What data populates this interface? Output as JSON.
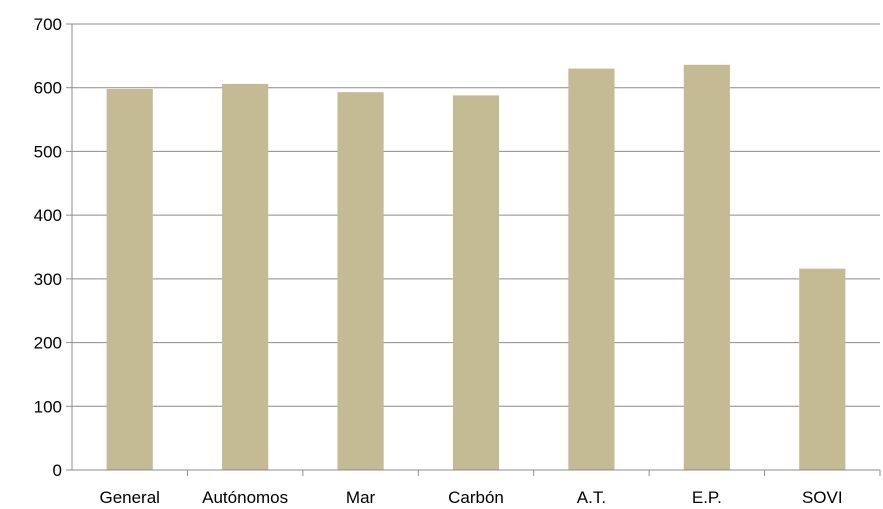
{
  "chart_data": {
    "type": "bar",
    "title": "",
    "xlabel": "",
    "ylabel": "",
    "categories": [
      "General",
      "Autónomos",
      "Mar",
      "Carbón",
      "A.T.",
      "E.P.",
      "SOVI"
    ],
    "values": [
      598,
      606,
      593,
      588,
      630,
      636,
      316
    ],
    "ylim": [
      0,
      700
    ],
    "yticks": [
      "0",
      "100",
      "200",
      "300",
      "400",
      "500",
      "600",
      "700"
    ],
    "grid": true,
    "legend": "none",
    "bar_color": "#c4bb95",
    "grid_color": "#8c8c8c"
  }
}
